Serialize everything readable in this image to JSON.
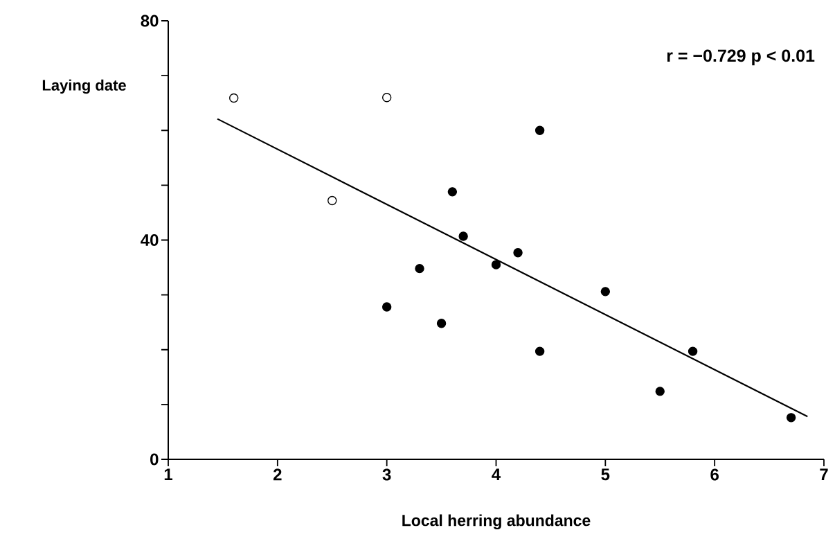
{
  "chart_data": {
    "type": "scatter",
    "xlabel": "Local herring abundance",
    "ylabel": "Laying date",
    "annotations": [
      "r = −0.729   p < 0.01"
    ],
    "xlim": [
      1,
      7
    ],
    "xticks": [
      1,
      2,
      3,
      4,
      5,
      6,
      7
    ],
    "ylim": [
      0,
      80
    ],
    "yticks": [
      0,
      {
        "value": 10,
        "label": null
      },
      {
        "value": 20,
        "label": null
      },
      {
        "value": 30,
        "label": null
      },
      40,
      {
        "value": 50,
        "label": null
      },
      {
        "value": 60,
        "label": null
      },
      {
        "value": 70,
        "label": null
      },
      80
    ],
    "series": [
      {
        "color": "#ffffff",
        "marker": "circle",
        "x": [
          1.6,
          3.0,
          2.5
        ],
        "values": [
          65.9,
          66.0,
          47.2
        ]
      },
      {
        "color": "#000000",
        "marker": "circle",
        "x": [
          4.4,
          3.6,
          3.7,
          4.2,
          4.0,
          3.3,
          5.0,
          3.0,
          3.5,
          4.4,
          5.8,
          5.5,
          6.7
        ],
        "values": [
          60.0,
          48.8,
          40.7,
          37.7,
          35.5,
          34.8,
          30.6,
          27.8,
          24.8,
          19.7,
          19.7,
          12.4,
          7.6
        ]
      },
      {
        "type": "line",
        "color": "#000000",
        "line_style": "solid",
        "marker": "none",
        "x": [
          1.45,
          6.85
        ],
        "values": [
          62.1,
          7.8
        ]
      }
    ]
  }
}
